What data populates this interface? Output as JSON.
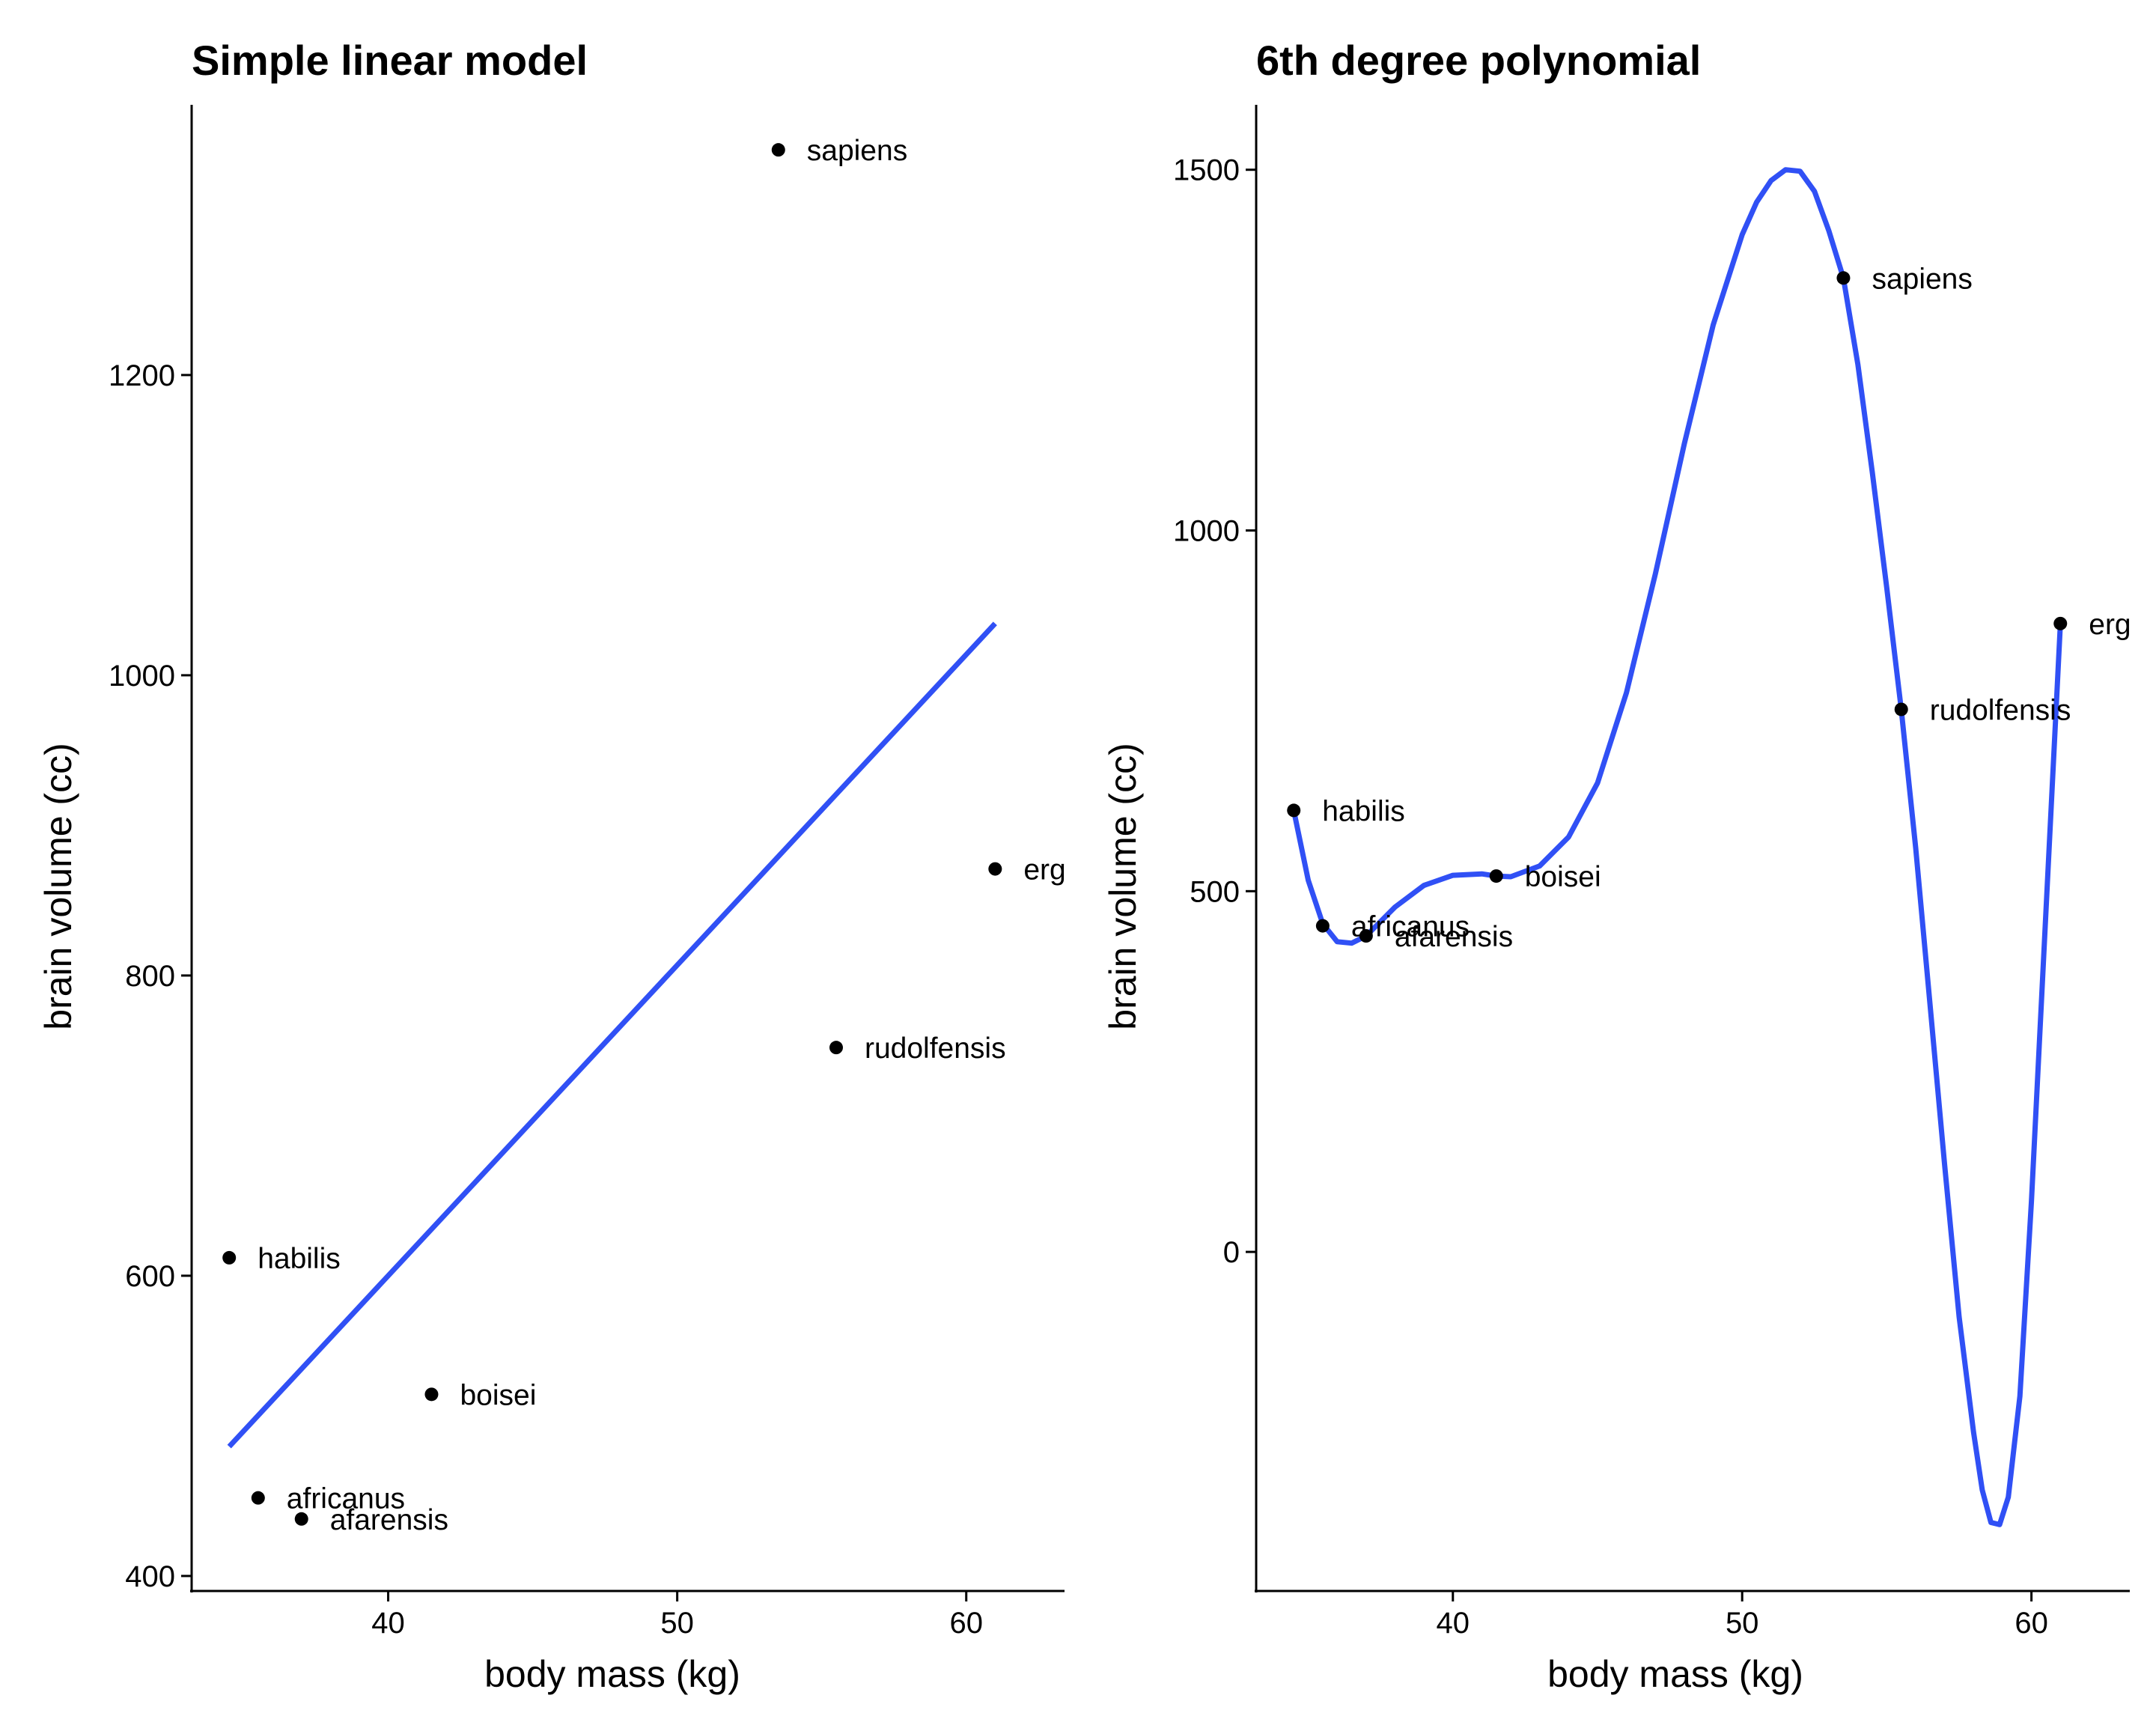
{
  "chart_data": [
    {
      "type": "scatter",
      "title": "Simple linear model",
      "xlabel": "body mass (kg)",
      "ylabel": "brain volume (cc)",
      "xlim": [
        33.2,
        63.4
      ],
      "ylim": [
        390,
        1380
      ],
      "xticks": [
        40,
        50,
        60
      ],
      "yticks": [
        400,
        600,
        800,
        1000,
        1200
      ],
      "grid": false,
      "line_color": "#3050F5",
      "points": [
        {
          "label": "afarensis",
          "x": 37.0,
          "y": 438
        },
        {
          "label": "africanus",
          "x": 35.5,
          "y": 452
        },
        {
          "label": "habilis",
          "x": 34.5,
          "y": 612
        },
        {
          "label": "boisei",
          "x": 41.5,
          "y": 521
        },
        {
          "label": "rudolfensis",
          "x": 55.5,
          "y": 752
        },
        {
          "label": "ergaster",
          "x": 61.0,
          "y": 871
        },
        {
          "label": "sapiens",
          "x": 53.5,
          "y": 1350
        }
      ],
      "fit": {
        "kind": "linear",
        "intercept": -227.6,
        "slope": 20.69,
        "x_range": [
          34.5,
          61.0
        ]
      }
    },
    {
      "type": "scatter",
      "title": "6th degree polynomial",
      "xlabel": "body mass (kg)",
      "ylabel": "brain volume (cc)",
      "xlim": [
        33.2,
        63.4
      ],
      "ylim": [
        -470,
        1590
      ],
      "xticks": [
        40,
        50,
        60
      ],
      "yticks": [
        0,
        500,
        1000,
        1500
      ],
      "grid": false,
      "line_color": "#3050F5",
      "points": [
        {
          "label": "afarensis",
          "x": 37.0,
          "y": 438
        },
        {
          "label": "africanus",
          "x": 35.5,
          "y": 452
        },
        {
          "label": "habilis",
          "x": 34.5,
          "y": 612
        },
        {
          "label": "boisei",
          "x": 41.5,
          "y": 521
        },
        {
          "label": "rudolfensis",
          "x": 55.5,
          "y": 752
        },
        {
          "label": "ergaster",
          "x": 61.0,
          "y": 871
        },
        {
          "label": "sapiens",
          "x": 53.5,
          "y": 1350
        }
      ],
      "fit": {
        "kind": "polynomial",
        "curve": [
          [
            34.5,
            612
          ],
          [
            35.0,
            515
          ],
          [
            35.5,
            455
          ],
          [
            36.0,
            430
          ],
          [
            36.5,
            428
          ],
          [
            37.0,
            438
          ],
          [
            37.5,
            458
          ],
          [
            38.0,
            478
          ],
          [
            39.0,
            508
          ],
          [
            40.0,
            522
          ],
          [
            41.0,
            524
          ],
          [
            41.5,
            521
          ],
          [
            42.0,
            520
          ],
          [
            43.0,
            535
          ],
          [
            44.0,
            575
          ],
          [
            45.0,
            650
          ],
          [
            46.0,
            775
          ],
          [
            47.0,
            940
          ],
          [
            48.0,
            1120
          ],
          [
            49.0,
            1285
          ],
          [
            50.0,
            1410
          ],
          [
            50.5,
            1455
          ],
          [
            51.0,
            1485
          ],
          [
            51.5,
            1500
          ],
          [
            52.0,
            1498
          ],
          [
            52.5,
            1470
          ],
          [
            53.0,
            1415
          ],
          [
            53.5,
            1350
          ],
          [
            54.0,
            1230
          ],
          [
            54.5,
            1080
          ],
          [
            55.0,
            920
          ],
          [
            55.5,
            752
          ],
          [
            56.0,
            560
          ],
          [
            56.5,
            340
          ],
          [
            57.0,
            120
          ],
          [
            57.5,
            -90
          ],
          [
            58.0,
            -250
          ],
          [
            58.3,
            -330
          ],
          [
            58.6,
            -375
          ],
          [
            58.9,
            -378
          ],
          [
            59.2,
            -340
          ],
          [
            59.6,
            -200
          ],
          [
            60.0,
            70
          ],
          [
            60.5,
            470
          ],
          [
            61.0,
            871
          ]
        ]
      }
    }
  ]
}
